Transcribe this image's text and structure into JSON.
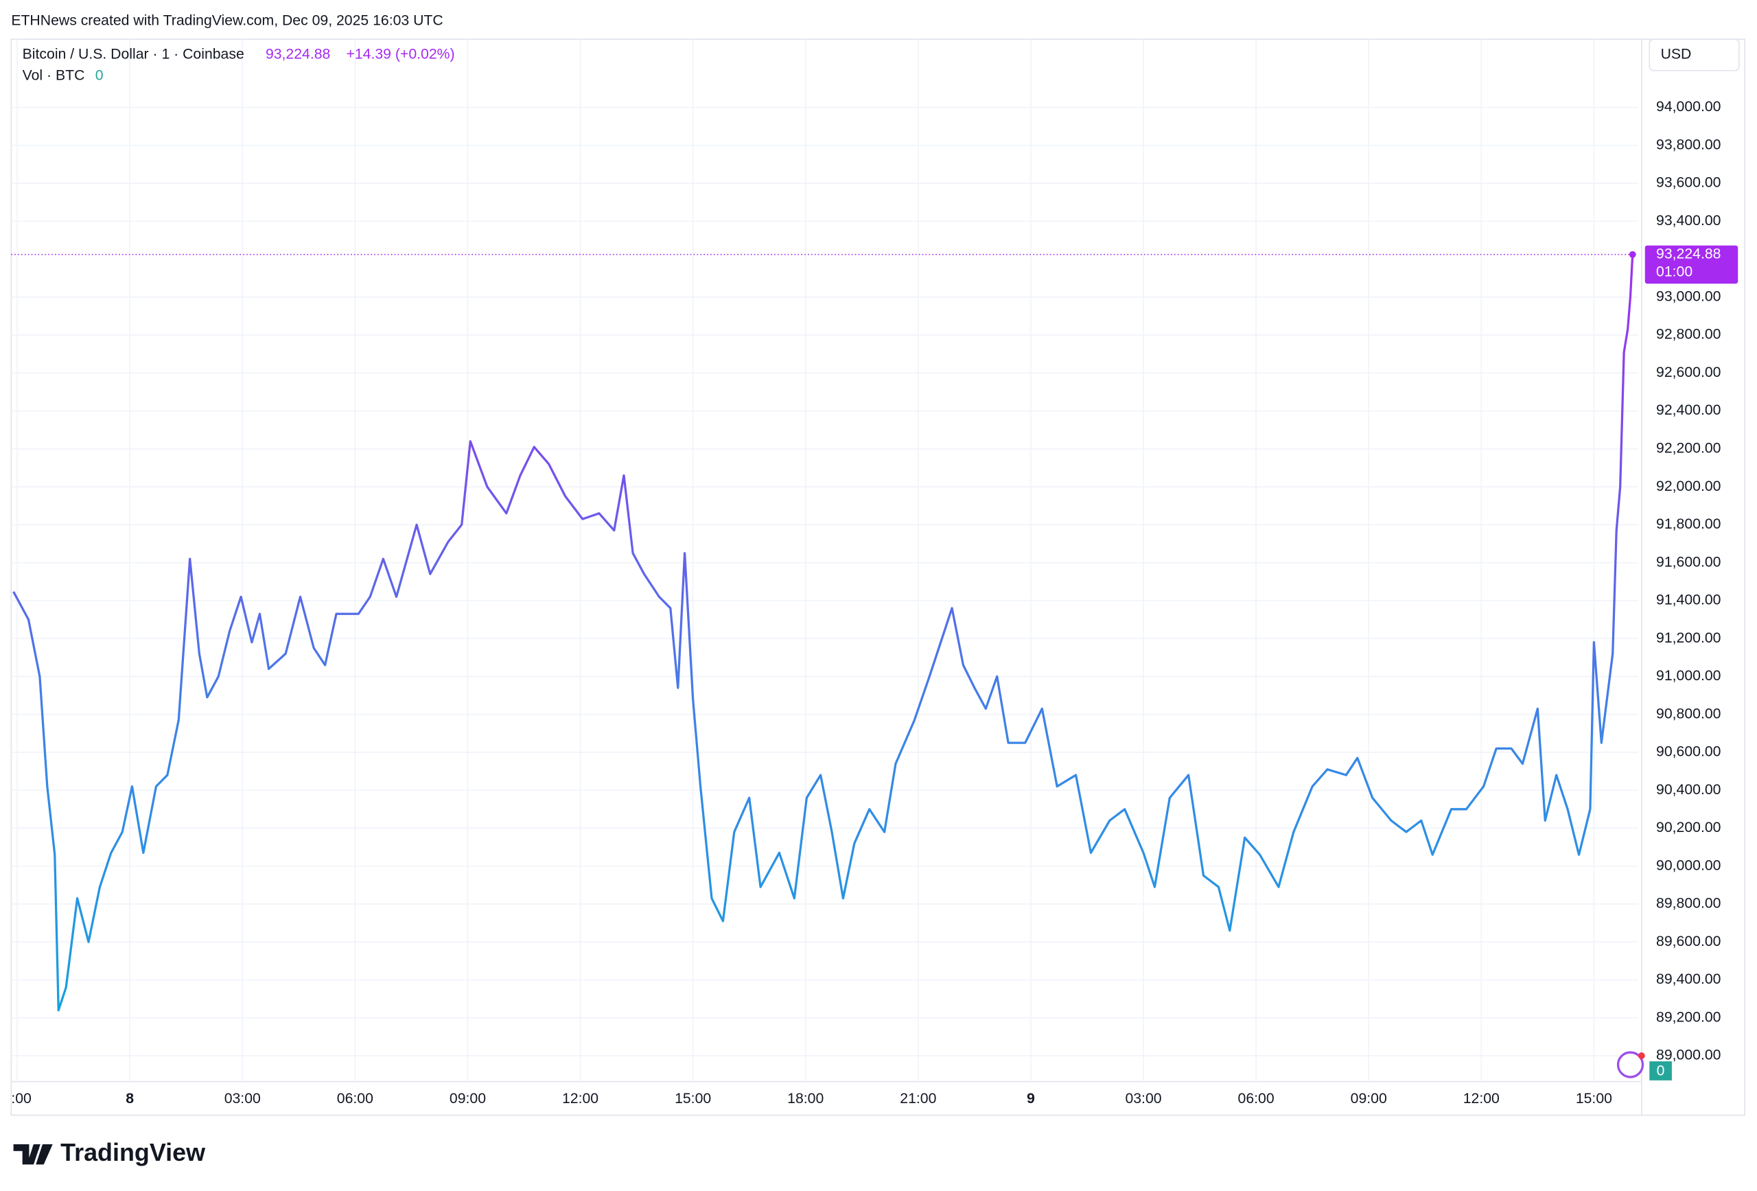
{
  "header": {
    "credit": "ETHNews created with TradingView.com, Dec 09, 2025 16:03 UTC",
    "symbol": "Bitcoin / U.S. Dollar · 1 · Coinbase",
    "price": "93,224.88",
    "change": "+14.39 (+0.02%)",
    "volume_label": "Vol · BTC",
    "volume_value": "0",
    "currency": "USD",
    "countdown": "01:00",
    "volume_badge": "0",
    "brand": "TradingView"
  },
  "chart_data": {
    "type": "line",
    "series": [
      {
        "name": "Bitcoin / U.S. Dollar",
        "colors": [
          "#a52cef",
          "#7452ec",
          "#3a86e6",
          "#17a0df"
        ],
        "x": [
          -3.1,
          -2.7,
          -2.4,
          -2.2,
          -2.0,
          -1.9,
          -1.7,
          -1.4,
          -1.1,
          -0.8,
          -0.5,
          -0.2,
          0.06,
          0.36,
          0.7,
          1.0,
          1.3,
          1.6,
          1.85,
          2.06,
          2.36,
          2.66,
          2.96,
          3.25,
          3.46,
          3.7,
          4.15,
          4.54,
          4.9,
          5.2,
          5.5,
          6.09,
          6.4,
          6.75,
          7.1,
          7.64,
          8.0,
          8.48,
          8.84,
          9.07,
          9.52,
          10.03,
          10.4,
          10.77,
          11.16,
          11.6,
          12.06,
          12.5,
          12.9,
          13.16,
          13.4,
          13.7,
          14.1,
          14.4,
          14.6,
          14.78,
          15.0,
          15.2,
          15.5,
          15.8,
          16.1,
          16.5,
          16.8,
          17.3,
          17.7,
          18.03,
          18.4,
          18.7,
          19.0,
          19.3,
          19.7,
          20.1,
          20.4,
          20.9,
          21.3,
          21.6,
          21.9,
          22.2,
          22.5,
          22.8,
          23.1,
          23.4,
          23.85,
          24.3,
          24.7,
          25.2,
          25.6,
          26.1,
          26.5,
          27.0,
          27.3,
          27.7,
          28.2,
          28.6,
          29.0,
          29.3,
          29.7,
          30.1,
          30.6,
          31.0,
          31.5,
          31.9,
          32.4,
          32.7,
          33.1,
          33.6,
          34.0,
          34.4,
          34.7,
          35.2,
          35.6,
          36.06,
          36.4,
          36.8,
          37.1,
          37.5,
          37.7,
          38.0,
          38.3,
          38.6,
          38.9,
          39.0,
          39.2,
          39.5,
          39.6,
          39.7,
          39.8,
          39.9,
          39.97,
          40.03
        ],
        "values": [
          91447,
          91300,
          91000,
          90420,
          90060,
          89240,
          89360,
          89830,
          89600,
          89890,
          90070,
          90180,
          90420,
          90070,
          90420,
          90480,
          90770,
          91620,
          91120,
          90890,
          91000,
          91240,
          91420,
          91180,
          91330,
          91040,
          91120,
          91420,
          91150,
          91060,
          91330,
          91330,
          91420,
          91620,
          91420,
          91800,
          91540,
          91710,
          91800,
          92240,
          92000,
          91860,
          92060,
          92210,
          92120,
          91950,
          91830,
          91860,
          91770,
          92060,
          91650,
          91540,
          91420,
          91360,
          90940,
          91650,
          90880,
          90420,
          89830,
          89710,
          90180,
          90360,
          89890,
          90070,
          89830,
          90360,
          90480,
          90180,
          89830,
          90120,
          90300,
          90180,
          90540,
          90770,
          91000,
          91180,
          91360,
          91060,
          90940,
          90830,
          91000,
          90650,
          90650,
          90830,
          90420,
          90480,
          90070,
          90240,
          90300,
          90070,
          89890,
          90360,
          90480,
          89950,
          89890,
          89660,
          90150,
          90060,
          89890,
          90180,
          90420,
          90510,
          90480,
          90570,
          90360,
          90240,
          90180,
          90240,
          90060,
          90300,
          90300,
          90420,
          90620,
          90620,
          90540,
          90830,
          90240,
          90480,
          90300,
          90060,
          90300,
          91180,
          90650,
          91120,
          91770,
          92000,
          92710,
          92830,
          93000,
          93224.88
        ]
      }
    ],
    "last_color": "#a62af0",
    "xlim": [
      -3.16,
      40.18
    ],
    "xticks": [
      {
        "value": -3,
        "label": ":00"
      },
      {
        "value": 0,
        "label": "8"
      },
      {
        "value": 3,
        "label": "03:00"
      },
      {
        "value": 6,
        "label": "06:00"
      },
      {
        "value": 9,
        "label": "09:00"
      },
      {
        "value": 12,
        "label": "12:00"
      },
      {
        "value": 15,
        "label": "15:00"
      },
      {
        "value": 18,
        "label": "18:00"
      },
      {
        "value": 21,
        "label": "21:00"
      },
      {
        "value": 24,
        "label": "9"
      },
      {
        "value": 27,
        "label": "03:00"
      },
      {
        "value": 30,
        "label": "06:00"
      },
      {
        "value": 33,
        "label": "09:00"
      },
      {
        "value": 36,
        "label": "12:00"
      },
      {
        "value": 39,
        "label": "15:00"
      }
    ],
    "ylim": [
      88870,
      94360
    ],
    "yticks": [
      {
        "value": 89000,
        "label": "89,000.00"
      },
      {
        "value": 89200,
        "label": "89,200.00"
      },
      {
        "value": 89400,
        "label": "89,400.00"
      },
      {
        "value": 89600,
        "label": "89,600.00"
      },
      {
        "value": 89800,
        "label": "89,800.00"
      },
      {
        "value": 90000,
        "label": "90,000.00"
      },
      {
        "value": 90200,
        "label": "90,200.00"
      },
      {
        "value": 90400,
        "label": "90,400.00"
      },
      {
        "value": 90600,
        "label": "90,600.00"
      },
      {
        "value": 90800,
        "label": "90,800.00"
      },
      {
        "value": 91000,
        "label": "91,000.00"
      },
      {
        "value": 91200,
        "label": "91,200.00"
      },
      {
        "value": 91400,
        "label": "91,400.00"
      },
      {
        "value": 91600,
        "label": "91,600.00"
      },
      {
        "value": 91800,
        "label": "91,800.00"
      },
      {
        "value": 92000,
        "label": "92,000.00"
      },
      {
        "value": 92200,
        "label": "92,200.00"
      },
      {
        "value": 92400,
        "label": "92,400.00"
      },
      {
        "value": 92600,
        "label": "92,600.00"
      },
      {
        "value": 92800,
        "label": "92,800.00"
      },
      {
        "value": 93000,
        "label": "93,000.00"
      },
      {
        "value": 93400,
        "label": "93,400.00"
      },
      {
        "value": 93600,
        "label": "93,600.00"
      },
      {
        "value": 93800,
        "label": "93,800.00"
      },
      {
        "value": 94000,
        "label": "94,000.00"
      }
    ],
    "grid": true
  }
}
